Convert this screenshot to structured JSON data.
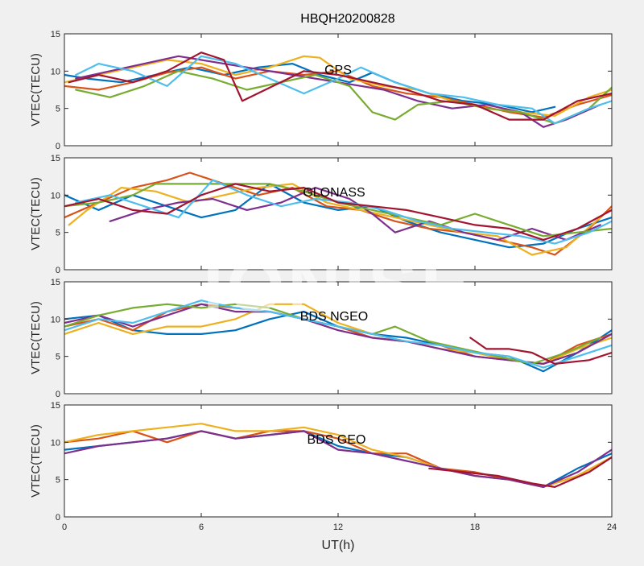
{
  "figure": {
    "title": "HBQH20200828",
    "xlabel": "UT(h)",
    "watermark": "IONISE",
    "background": "#f0f0f0",
    "axes_background": "#ffffff"
  },
  "chart_data": [
    {
      "type": "line",
      "panel_label": "GPS",
      "ylabel": "VTEC(TECU)",
      "xlim": [
        0,
        24
      ],
      "ylim": [
        0,
        15
      ],
      "x_ticks": [
        0,
        6,
        12,
        18,
        24
      ],
      "y_ticks": [
        0,
        5,
        10,
        15
      ],
      "grid": false,
      "series": [
        {
          "color": "#0072BD",
          "x": [
            0,
            1,
            2.5,
            4,
            5.5,
            7,
            8.5,
            10,
            11.2,
            12.5,
            13.5,
            14.5,
            16,
            17.5,
            19,
            20.5,
            21.5
          ],
          "y": [
            9.5,
            9,
            8.5,
            9.5,
            10.5,
            9.5,
            10.5,
            11,
            9.5,
            8.5,
            9.8,
            8.5,
            7,
            6,
            5.5,
            4.5,
            5.2
          ]
        },
        {
          "color": "#D95319",
          "x": [
            0,
            1.5,
            3,
            4.5,
            6,
            7.5,
            9,
            10.5,
            12,
            13.5,
            15,
            16.5,
            18,
            19.5,
            21,
            22.5,
            24
          ],
          "y": [
            8,
            7.5,
            8.5,
            9.8,
            10.5,
            9,
            10,
            9.5,
            10,
            8,
            7,
            6.5,
            5.5,
            4.5,
            3.8,
            5.5,
            6.8
          ]
        },
        {
          "color": "#EDB120",
          "x": [
            0,
            1.5,
            3,
            4.5,
            6,
            7.5,
            9,
            10.5,
            11.2,
            12.5,
            14,
            15.5,
            17,
            18.5,
            20,
            21.5,
            23,
            24
          ],
          "y": [
            8.5,
            9.5,
            10.5,
            11.5,
            11,
            9.5,
            10.5,
            12,
            11.8,
            9,
            8,
            7.5,
            6,
            5,
            4.5,
            4,
            6.5,
            7.5
          ]
        },
        {
          "color": "#7E2F8E",
          "x": [
            0.5,
            2,
            3.5,
            5,
            12,
            14,
            15.5,
            17,
            18.5,
            20,
            21,
            22,
            23.5
          ],
          "y": [
            9,
            10,
            11,
            12,
            8.5,
            7.5,
            6,
            5,
            5.5,
            4.5,
            2.5,
            3.5,
            5.5
          ]
        },
        {
          "color": "#77AC30",
          "x": [
            0.5,
            2,
            3.5,
            5,
            6.5,
            8,
            9.5,
            11,
            12.5,
            13.5,
            14.5,
            15.5,
            17,
            18.5,
            20,
            21.5,
            23,
            24
          ],
          "y": [
            7.5,
            6.5,
            8,
            10,
            9,
            7.5,
            8.5,
            9.5,
            8,
            4.5,
            3.5,
            5.5,
            6,
            5,
            4.5,
            3,
            5,
            7.8
          ]
        },
        {
          "color": "#4DBEEE",
          "x": [
            0.5,
            1.5,
            3,
            4.5,
            6,
            7.5,
            9,
            10.5,
            12,
            13,
            14.5,
            16,
            17.5,
            19,
            20.5,
            21.5,
            23,
            24
          ],
          "y": [
            9.5,
            11,
            10,
            8,
            12,
            11,
            9,
            7,
            9,
            10.5,
            8.5,
            7,
            6.5,
            5.5,
            5,
            3,
            5,
            6
          ]
        },
        {
          "color": "#A2142F",
          "x": [
            0.2,
            1.5,
            3,
            4.5,
            6,
            7,
            7.8,
            10.5,
            12,
            13.5,
            15,
            16.5,
            18,
            19.5,
            21,
            22.5,
            24
          ],
          "y": [
            8.5,
            9.5,
            8.5,
            10,
            12.5,
            11.5,
            6,
            10,
            9.5,
            8.5,
            7.5,
            6,
            5.5,
            3.5,
            3.5,
            6,
            7
          ]
        }
      ]
    },
    {
      "type": "line",
      "panel_label": "GLONASS",
      "ylabel": "VTEC(TECU)",
      "xlim": [
        0,
        24
      ],
      "ylim": [
        0,
        15
      ],
      "x_ticks": [
        0,
        6,
        12,
        18,
        24
      ],
      "y_ticks": [
        0,
        5,
        10,
        15
      ],
      "grid": false,
      "series": [
        {
          "color": "#0072BD",
          "x": [
            0,
            1.5,
            3,
            4.5,
            6,
            7.5,
            9,
            10.5,
            12,
            13.5,
            15,
            16.5,
            18,
            19.5,
            21,
            22.5,
            24
          ],
          "y": [
            10,
            8,
            10,
            8.5,
            7,
            8,
            11.5,
            9,
            8,
            8.5,
            6.5,
            5,
            4,
            3,
            3.5,
            5.5,
            7
          ]
        },
        {
          "color": "#D95319",
          "x": [
            0,
            1.5,
            3,
            4.5,
            5.5,
            7,
            8.5,
            10,
            11.5,
            13,
            14.5,
            16,
            17.5,
            19,
            20.5,
            21.5,
            23,
            24
          ],
          "y": [
            7,
            9,
            11,
            12,
            13,
            11.5,
            10,
            11,
            8.5,
            8,
            6.5,
            5.5,
            5,
            4,
            3,
            2,
            5.5,
            8.5
          ]
        },
        {
          "color": "#EDB120",
          "x": [
            0.2,
            1,
            2.5,
            4,
            5.5,
            7,
            8.5,
            10,
            11.5,
            13,
            14.5,
            16,
            17.5,
            19,
            20.5,
            22,
            23.5
          ],
          "y": [
            6,
            8,
            11,
            10.5,
            9,
            10,
            11,
            11.5,
            9,
            8,
            7,
            6,
            5,
            4.5,
            2,
            3,
            7
          ]
        },
        {
          "color": "#7E2F8E",
          "x": [
            2,
            3.5,
            5,
            6.5,
            8,
            9.5,
            11,
            12.5,
            13.5,
            14.5,
            16,
            17.5,
            19,
            20.5,
            22,
            23.5
          ],
          "y": [
            6.5,
            8,
            9,
            9.5,
            8,
            9,
            11,
            9.5,
            7.5,
            5,
            6.5,
            5,
            4,
            5.5,
            4,
            6
          ]
        },
        {
          "color": "#77AC30",
          "x": [
            0,
            1.5,
            3,
            4,
            9,
            10.5,
            12,
            13.5,
            15,
            16.5,
            18,
            19.5,
            21,
            22.5,
            24
          ],
          "y": [
            8.5,
            9,
            10,
            11.5,
            11.5,
            10.5,
            9,
            8,
            7,
            6,
            7.5,
            6,
            4.5,
            5,
            5.5
          ]
        },
        {
          "color": "#4DBEEE",
          "x": [
            0.5,
            2,
            3.5,
            5,
            6.5,
            8,
            9.5,
            11,
            12.5,
            14,
            15.5,
            17,
            18.5,
            20,
            21.5,
            23,
            24
          ],
          "y": [
            9,
            10,
            8.5,
            7,
            12,
            10,
            8.5,
            9.5,
            9,
            8,
            6.5,
            5.5,
            5,
            4.5,
            3.5,
            5,
            6.5
          ]
        },
        {
          "color": "#A2142F",
          "x": [
            0,
            1.5,
            3,
            4.5,
            6,
            7.5,
            9,
            10.5,
            12,
            13.5,
            15,
            16.5,
            18,
            19.5,
            21,
            22.5,
            24
          ],
          "y": [
            8.5,
            9.5,
            8,
            7.5,
            10,
            11.5,
            10.5,
            11,
            9,
            8.5,
            8,
            7,
            6,
            5.5,
            4,
            5.5,
            8
          ]
        }
      ]
    },
    {
      "type": "line",
      "panel_label": "BDS NGEO",
      "ylabel": "VTEC(TECU)",
      "xlim": [
        0,
        24
      ],
      "ylim": [
        0,
        15
      ],
      "x_ticks": [
        0,
        6,
        12,
        18,
        24
      ],
      "y_ticks": [
        0,
        5,
        10,
        15
      ],
      "grid": false,
      "series": [
        {
          "color": "#0072BD",
          "x": [
            0,
            1.5,
            3,
            4.5,
            6,
            7.5,
            9,
            10.5,
            12,
            13.5,
            15,
            16.5,
            18,
            19.5,
            21,
            22.5,
            24
          ],
          "y": [
            10,
            10.5,
            8.5,
            8,
            8,
            8.5,
            10,
            11,
            9,
            8,
            7.5,
            6.5,
            5.5,
            5,
            3,
            5.5,
            8.5
          ]
        },
        {
          "color": "#D95319",
          "x": [
            0,
            1.5,
            3,
            4.5,
            6,
            7.5,
            9,
            10.5,
            12,
            13.5,
            15,
            16.5,
            18,
            19.5,
            21,
            22.5,
            24
          ],
          "y": [
            9,
            10,
            8.5,
            11,
            12,
            11.5,
            11,
            10,
            9,
            7.5,
            7,
            6.5,
            5,
            4.5,
            4,
            6.5,
            8
          ]
        },
        {
          "color": "#EDB120",
          "x": [
            0,
            1.5,
            3,
            4.5,
            6,
            7.5,
            9,
            10.5,
            12,
            13.5,
            15,
            16.5,
            18,
            19.5,
            21,
            22.5,
            24
          ],
          "y": [
            8,
            9.5,
            8,
            9,
            9,
            10,
            12,
            12,
            9.5,
            8,
            7,
            6,
            5.5,
            4.5,
            4,
            6,
            7.5
          ]
        },
        {
          "color": "#7E2F8E",
          "x": [
            0,
            1.5,
            3,
            4.5,
            6,
            7.5,
            9,
            10.5,
            12,
            13.5,
            15,
            16.5,
            18,
            19.5,
            21,
            22.5,
            24
          ],
          "y": [
            9.5,
            10.5,
            9,
            10.5,
            12,
            11,
            11,
            10,
            8.5,
            7.5,
            7,
            6,
            5,
            4.5,
            4,
            5.5,
            8
          ]
        },
        {
          "color": "#77AC30",
          "x": [
            0,
            1.5,
            3,
            4.5,
            6,
            7.5,
            9,
            10.5,
            12,
            13.5,
            14.5,
            16,
            17.5,
            19,
            20.5,
            22,
            23.5
          ],
          "y": [
            9,
            10.5,
            11.5,
            12,
            11.5,
            12,
            11.5,
            10,
            9,
            8,
            9,
            7,
            6,
            5,
            4,
            5.5,
            7.5
          ]
        },
        {
          "color": "#4DBEEE",
          "x": [
            0,
            1.5,
            3,
            4.5,
            6,
            7.5,
            9,
            10.5,
            12,
            13.5,
            15,
            16.5,
            18,
            19.5,
            21,
            22.5,
            24
          ],
          "y": [
            8.5,
            10,
            9.5,
            11,
            12.5,
            11.5,
            11,
            10,
            9,
            8,
            7,
            6.5,
            5.5,
            5,
            3.5,
            5,
            6.5
          ]
        },
        {
          "color": "#A2142F",
          "x": [
            17.8,
            18.5,
            19.5,
            20.5,
            21.5,
            23,
            24
          ],
          "y": [
            7.5,
            6,
            6,
            5.5,
            4,
            4.5,
            5.5
          ]
        }
      ]
    },
    {
      "type": "line",
      "panel_label": "BDS GEO",
      "ylabel": "VTEC(TECU)",
      "xlim": [
        0,
        24
      ],
      "ylim": [
        0,
        15
      ],
      "x_ticks": [
        0,
        6,
        12,
        18,
        24
      ],
      "y_ticks": [
        0,
        5,
        10,
        15
      ],
      "grid": false,
      "series": [
        {
          "color": "#0072BD",
          "x": [
            0,
            1.5,
            3,
            4.5,
            6,
            7.5,
            9,
            10.5,
            12,
            13.5,
            15,
            16.5,
            18,
            19.5,
            21,
            22.5,
            24
          ],
          "y": [
            9,
            9.5,
            10,
            10.5,
            11.5,
            10.5,
            11,
            11.5,
            9.5,
            8.5,
            8,
            6.5,
            5.5,
            5,
            4,
            6.5,
            8.5
          ]
        },
        {
          "color": "#D95319",
          "x": [
            0,
            1.5,
            3,
            4.5,
            6,
            7.5,
            9,
            10.5,
            12,
            13.5,
            15,
            16.5,
            18,
            19.5,
            21,
            22.5,
            24
          ],
          "y": [
            10,
            10.5,
            11.5,
            10,
            11.5,
            10.5,
            11.5,
            11.5,
            10.5,
            8.5,
            8.5,
            6.5,
            6,
            5,
            4,
            5.5,
            8
          ]
        },
        {
          "color": "#EDB120",
          "x": [
            0,
            1.5,
            3,
            4.5,
            6,
            7.5,
            9,
            10.5,
            12,
            13.5,
            15,
            16.5,
            18,
            19.5,
            21,
            22.5,
            24
          ],
          "y": [
            10,
            11,
            11.5,
            12,
            12.5,
            11.5,
            11.5,
            12,
            11,
            9,
            8,
            6.5,
            5.5,
            5,
            4,
            5.5,
            8
          ]
        },
        {
          "color": "#7E2F8E",
          "x": [
            0,
            1.5,
            3,
            4.5,
            6,
            7.5,
            9,
            10.5,
            12,
            13.5,
            15,
            16.5,
            18,
            19.5,
            21,
            22.5,
            24
          ],
          "y": [
            8.5,
            9.5,
            10,
            10.5,
            11.5,
            10.5,
            11,
            11.5,
            9,
            8.5,
            7.5,
            6.5,
            5.5,
            5,
            4,
            6,
            9
          ]
        },
        {
          "color": "#A2142F",
          "x": [
            16,
            17.5,
            19,
            20.5,
            21.5,
            23,
            24
          ],
          "y": [
            6.5,
            6,
            5.5,
            4.5,
            4,
            6,
            8
          ]
        }
      ]
    }
  ]
}
